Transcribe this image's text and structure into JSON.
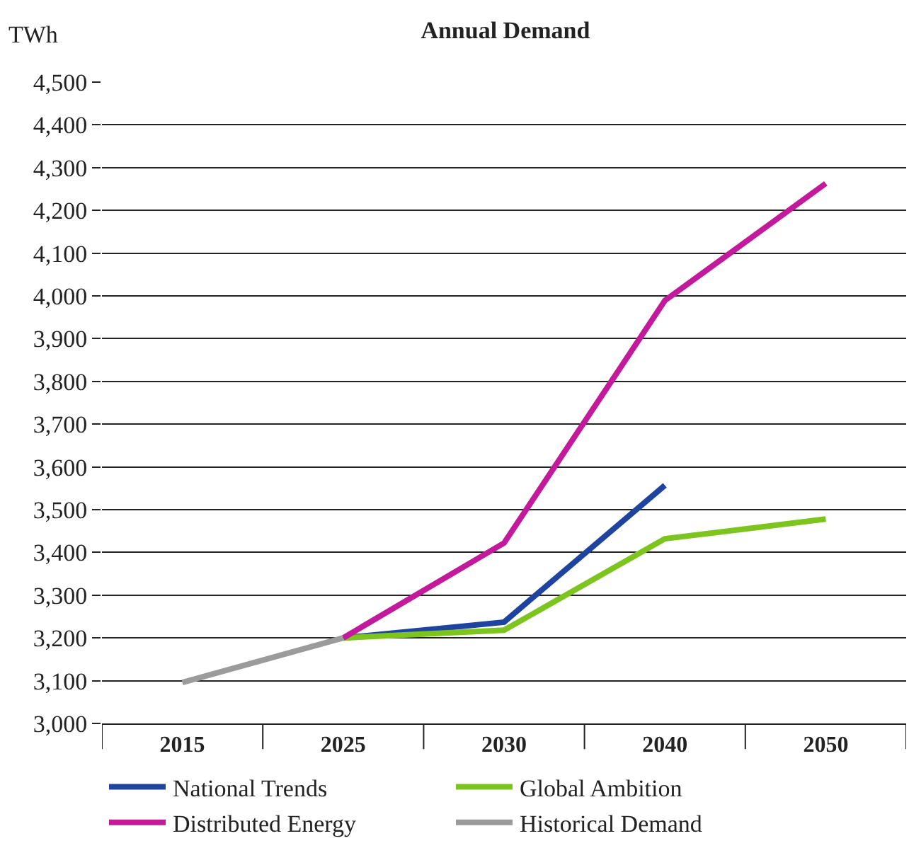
{
  "chart_data": {
    "type": "line",
    "title": "Annual Demand",
    "ylabel": "TWh",
    "categories": [
      "2015",
      "2025",
      "2030",
      "2040",
      "2050"
    ],
    "series": [
      {
        "name": "National Trends",
        "color": "#1f44a0",
        "values": [
          null,
          3200,
          3237,
          3557,
          null
        ]
      },
      {
        "name": "Global Ambition",
        "color": "#7dc41f",
        "values": [
          null,
          3200,
          3218,
          3432,
          3478
        ]
      },
      {
        "name": "Distributed Energy",
        "color": "#c21a9b",
        "values": [
          null,
          3200,
          3422,
          3989,
          4263
        ]
      },
      {
        "name": "Historical Demand",
        "color": "#9b9b9b",
        "values": [
          3096,
          3200,
          null,
          null,
          null
        ]
      }
    ],
    "ylim": [
      3000,
      4500
    ],
    "yticks": [
      {
        "value": 3000,
        "label": "3,000"
      },
      {
        "value": 3100,
        "label": "3,100"
      },
      {
        "value": 3200,
        "label": "3,200"
      },
      {
        "value": 3300,
        "label": "3,300"
      },
      {
        "value": 3400,
        "label": "3,400"
      },
      {
        "value": 3500,
        "label": "3,500"
      },
      {
        "value": 3600,
        "label": "3,600"
      },
      {
        "value": 3700,
        "label": "3,700"
      },
      {
        "value": 3800,
        "label": "3,800"
      },
      {
        "value": 3900,
        "label": "3,900"
      },
      {
        "value": 4000,
        "label": "4,000"
      },
      {
        "value": 4100,
        "label": "4,100"
      },
      {
        "value": 4200,
        "label": "4,200"
      },
      {
        "value": 4300,
        "label": "4,300"
      },
      {
        "value": 4400,
        "label": "4,400"
      },
      {
        "value": 4500,
        "label": "4,500"
      }
    ],
    "grid": "y",
    "legend": "bottom",
    "marker": "none",
    "line_style": "solid"
  }
}
